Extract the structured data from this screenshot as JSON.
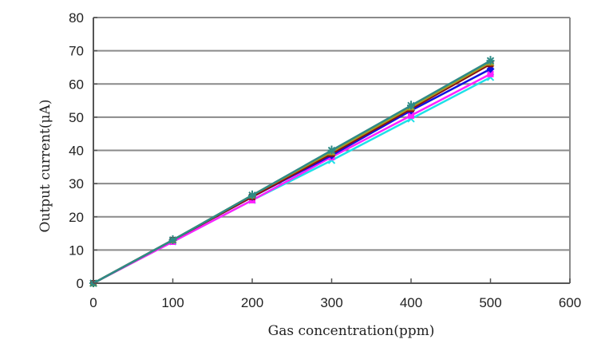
{
  "chart_data": {
    "type": "line",
    "title": "",
    "xlabel": "Gas concentration(ppm)",
    "ylabel": "Output current(μA)",
    "xlim": [
      0,
      600
    ],
    "ylim": [
      0,
      80
    ],
    "xticks": [
      0,
      100,
      200,
      300,
      400,
      500,
      600
    ],
    "yticks": [
      0,
      10,
      20,
      30,
      40,
      50,
      60,
      70,
      80
    ],
    "grid": "horizontal",
    "legend": "none",
    "x": [
      0,
      100,
      200,
      300,
      400,
      500
    ],
    "series": [
      {
        "color": "#2e8b86",
        "marker": "star",
        "values": [
          0,
          13,
          26.5,
          40,
          53.5,
          67
        ]
      },
      {
        "color": "#a8a020",
        "marker": "triangle",
        "values": [
          0,
          13,
          26.5,
          39.5,
          53,
          66.5
        ]
      },
      {
        "color": "#8b1010",
        "marker": "square",
        "values": [
          0,
          13,
          26,
          39,
          52.5,
          66
        ]
      },
      {
        "color": "#1010e0",
        "marker": "diamond",
        "values": [
          0,
          13,
          26,
          38.5,
          52,
          64.5
        ]
      },
      {
        "color": "#ff20ff",
        "marker": "square",
        "values": [
          0,
          12.5,
          25,
          38,
          50.5,
          63
        ]
      },
      {
        "color": "#20e0e8",
        "marker": "x",
        "values": [
          0,
          12.5,
          25,
          37,
          49.5,
          62
        ]
      }
    ]
  }
}
